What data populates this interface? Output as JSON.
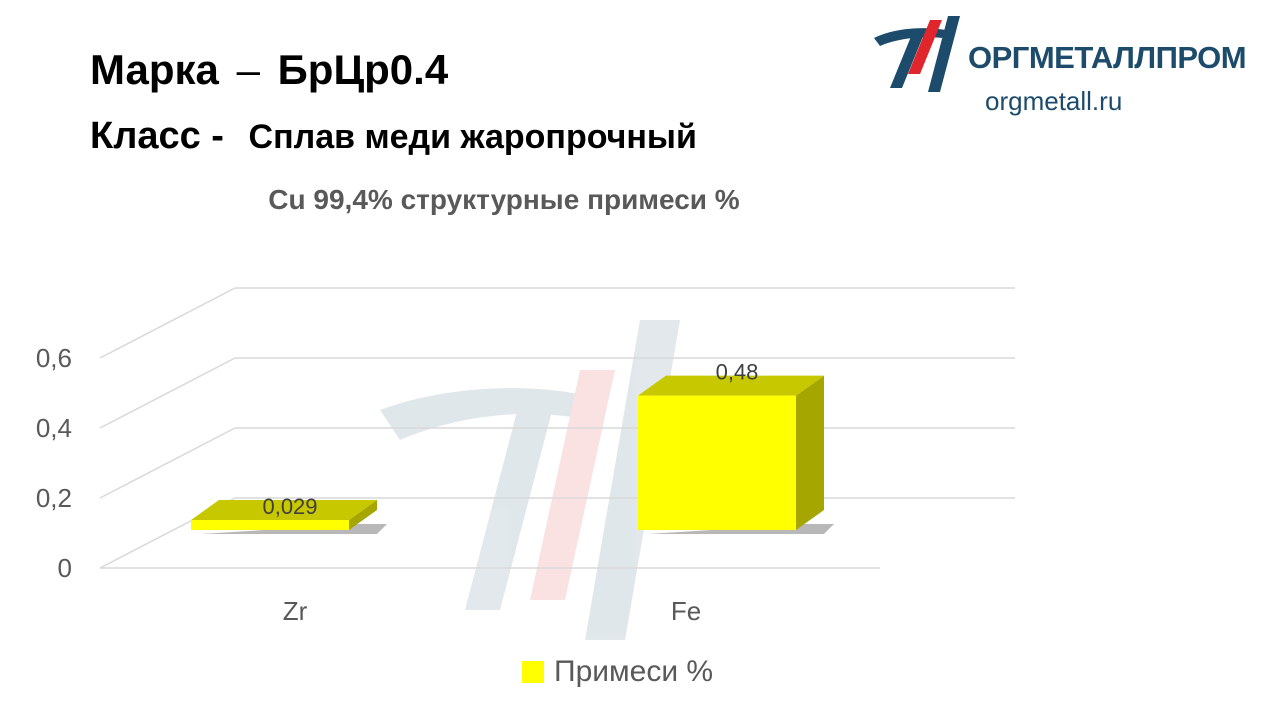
{
  "header": {
    "line1_label": "Марка",
    "line1_dash": "–",
    "line1_value": "БрЦр0.4",
    "line2_label": "Класс -",
    "line2_value": "Сплав меди жаропрочный"
  },
  "logo": {
    "brand": "ОРГМЕТАЛЛПРОМ",
    "url": "orgmetall.ru",
    "colors": {
      "dark": "#1d4b6b",
      "red": "#e0262c"
    }
  },
  "chart_data": {
    "type": "bar",
    "style": "3d-column",
    "title": "Cu 99,4% структурные примеси %",
    "categories": [
      "Zr",
      "Fe"
    ],
    "series": [
      {
        "name": "Примеси %",
        "values": [
          0.029,
          0.48
        ],
        "labels": [
          "0,029",
          "0,48"
        ],
        "color": "#ffff00"
      }
    ],
    "y_ticks": [
      "0",
      "0,2",
      "0,4",
      "0,6"
    ],
    "y_tick_values": [
      0,
      0.2,
      0.4,
      0.6
    ],
    "ylim": [
      0,
      0.6
    ],
    "xlabel": "",
    "ylabel": "",
    "grid": true,
    "legend": "bottom"
  }
}
